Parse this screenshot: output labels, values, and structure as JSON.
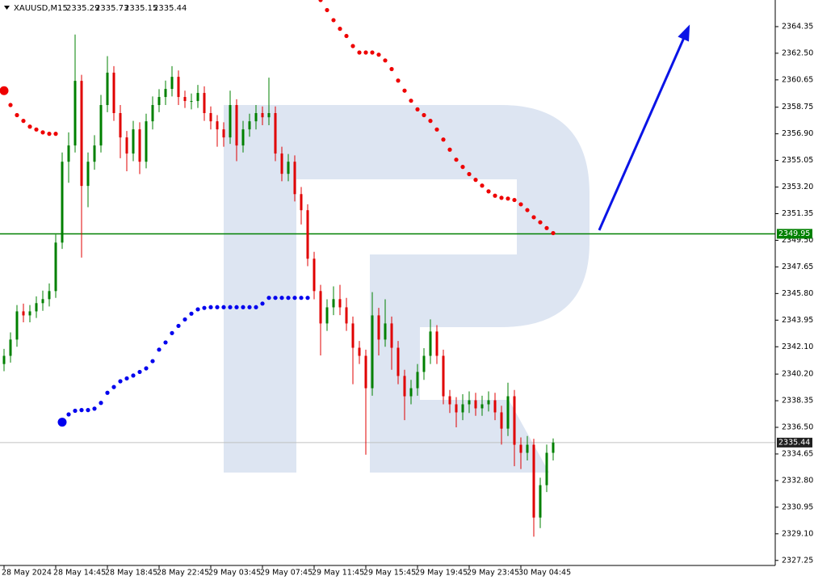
{
  "chart_data": {
    "type": "candlestick",
    "symbol": "XAUUSD,M15",
    "header_values": [
      2335.29,
      2335.73,
      2335.15,
      2335.44
    ],
    "up_color": "#008000",
    "down_color": "#e00000",
    "categories": [
      "28 May 2024",
      null,
      null,
      null,
      null,
      null,
      null,
      null,
      "28 May 14:45",
      null,
      null,
      null,
      null,
      null,
      null,
      null,
      "28 May 18:45",
      null,
      null,
      null,
      null,
      null,
      null,
      null,
      "28 May 22:45",
      null,
      null,
      null,
      null,
      null,
      null,
      null,
      "29 May 03:45",
      null,
      null,
      null,
      null,
      null,
      null,
      null,
      "29 May 07:45",
      null,
      null,
      null,
      null,
      null,
      null,
      null,
      "29 May 11:45",
      null,
      null,
      null,
      null,
      null,
      null,
      null,
      "29 May 15:45",
      null,
      null,
      null,
      null,
      null,
      null,
      null,
      "29 May 19:45",
      null,
      null,
      null,
      null,
      null,
      null,
      null,
      "29 May 23:45",
      null,
      null,
      null,
      null,
      null,
      null,
      null,
      "30 May 04:45",
      null,
      null,
      null,
      null,
      null
    ],
    "open": [
      2340.9,
      2341.47,
      2342.6,
      2344.56,
      2344.28,
      2344.56,
      2345.13,
      2345.41,
      2345.97,
      2349.34,
      2354.96,
      2356.09,
      2360.58,
      2353.28,
      2354.96,
      2356.09,
      2358.9,
      2361.15,
      2358.34,
      2356.65,
      2355.53,
      2357.21,
      2354.96,
      2357.77,
      2358.9,
      2359.46,
      2360.02,
      2360.86,
      2359.46,
      2359.18,
      2359.18,
      2359.74,
      2358.34,
      2357.77,
      2357.21,
      2356.65,
      2358.9,
      2356.09,
      2357.21,
      2357.77,
      2358.34,
      2358.05,
      2358.34,
      2355.53,
      2354.12,
      2354.96,
      2352.71,
      2351.59,
      2348.22,
      2345.97,
      2343.72,
      2344.84,
      2345.41,
      2344.84,
      2343.72,
      2342.03,
      2341.47,
      2339.22,
      2344.28,
      2342.6,
      2343.72,
      2342.03,
      2340.07,
      2338.66,
      2339.22,
      2340.35,
      2341.47,
      2343.16,
      2341.47,
      2338.66,
      2338.1,
      2337.54,
      2338.1,
      2338.38,
      2337.82,
      2338.1,
      2338.38,
      2337.54,
      2336.41,
      2338.66,
      2335.29,
      2334.73,
      2335.29,
      2330.23,
      2332.48,
      2334.73
    ],
    "high": [
      2341.95,
      2343.1,
      2345.0,
      2345.1,
      2345.0,
      2345.6,
      2346.0,
      2346.5,
      2349.9,
      2355.6,
      2357.0,
      2363.8,
      2361.0,
      2355.6,
      2356.8,
      2359.6,
      2362.3,
      2361.6,
      2358.9,
      2357.1,
      2357.8,
      2357.7,
      2358.3,
      2359.5,
      2360.0,
      2360.6,
      2361.6,
      2361.3,
      2359.9,
      2359.7,
      2360.3,
      2360.2,
      2358.8,
      2358.2,
      2357.7,
      2359.9,
      2359.3,
      2357.8,
      2358.3,
      2358.9,
      2358.8,
      2360.8,
      2358.8,
      2356.0,
      2355.5,
      2355.4,
      2353.2,
      2352.0,
      2348.7,
      2346.4,
      2345.4,
      2346.3,
      2346.4,
      2345.5,
      2344.2,
      2342.5,
      2341.9,
      2345.9,
      2344.8,
      2345.4,
      2344.2,
      2342.5,
      2340.5,
      2339.8,
      2340.9,
      2342.0,
      2344.0,
      2343.6,
      2341.9,
      2339.1,
      2338.6,
      2338.8,
      2339.0,
      2338.9,
      2338.7,
      2339.0,
      2338.9,
      2338.0,
      2339.6,
      2339.1,
      2335.8,
      2335.9,
      2335.7,
      2333.0,
      2335.3,
      2335.73
    ],
    "low": [
      2340.4,
      2341.0,
      2342.1,
      2343.8,
      2343.8,
      2344.1,
      2344.6,
      2344.9,
      2345.5,
      2348.9,
      2353.5,
      2355.6,
      2348.3,
      2351.8,
      2354.4,
      2355.6,
      2358.4,
      2357.8,
      2355.2,
      2354.3,
      2355.0,
      2354.1,
      2354.5,
      2357.2,
      2358.4,
      2358.9,
      2359.5,
      2358.9,
      2358.7,
      2358.6,
      2358.7,
      2357.8,
      2357.2,
      2356.0,
      2356.0,
      2356.2,
      2355.0,
      2355.6,
      2356.7,
      2357.2,
      2357.5,
      2357.5,
      2355.0,
      2353.6,
      2353.6,
      2352.2,
      2350.6,
      2347.7,
      2345.4,
      2341.5,
      2343.2,
      2344.3,
      2344.3,
      2343.2,
      2339.5,
      2340.9,
      2334.6,
      2338.7,
      2341.5,
      2342.1,
      2340.5,
      2339.5,
      2337.0,
      2338.1,
      2338.7,
      2339.8,
      2340.9,
      2340.9,
      2338.1,
      2337.5,
      2336.5,
      2337.0,
      2337.5,
      2337.3,
      2337.3,
      2337.6,
      2337.0,
      2335.3,
      2335.9,
      2333.8,
      2333.6,
      2334.2,
      2328.9,
      2329.5,
      2332.0,
      2334.2
    ],
    "close": [
      2341.47,
      2342.6,
      2344.56,
      2344.28,
      2344.56,
      2345.13,
      2345.41,
      2345.97,
      2349.34,
      2354.96,
      2356.09,
      2360.58,
      2353.28,
      2354.96,
      2356.09,
      2358.9,
      2361.15,
      2358.34,
      2356.65,
      2355.53,
      2357.21,
      2354.96,
      2357.77,
      2358.9,
      2359.46,
      2360.02,
      2360.86,
      2359.46,
      2359.18,
      2359.18,
      2359.74,
      2358.34,
      2357.77,
      2357.21,
      2356.65,
      2358.9,
      2356.09,
      2357.21,
      2357.77,
      2358.34,
      2358.05,
      2358.34,
      2355.53,
      2354.12,
      2354.96,
      2352.71,
      2351.59,
      2348.22,
      2345.97,
      2343.72,
      2344.84,
      2345.41,
      2344.84,
      2343.72,
      2342.03,
      2341.47,
      2339.22,
      2344.28,
      2342.6,
      2343.72,
      2342.03,
      2340.07,
      2338.66,
      2339.22,
      2340.35,
      2341.47,
      2343.16,
      2341.47,
      2338.66,
      2338.1,
      2337.54,
      2338.1,
      2338.38,
      2337.82,
      2338.1,
      2338.38,
      2337.54,
      2336.41,
      2338.66,
      2335.29,
      2334.73,
      2335.29,
      2330.23,
      2332.48,
      2334.73,
      2335.44
    ],
    "overlays": [
      {
        "color": "#ee0000",
        "values": [
          2359.9,
          2358.9,
          2358.2,
          2357.8,
          2357.4,
          2357.2,
          2357.0,
          2356.9,
          2356.9,
          null,
          null,
          null,
          null,
          null,
          null,
          null,
          null,
          null,
          null,
          null,
          null,
          null,
          null,
          null,
          null,
          null,
          null,
          null,
          null,
          null,
          null,
          null,
          null,
          null,
          null,
          null,
          null,
          null,
          null,
          null,
          null,
          null,
          null,
          null,
          null,
          null,
          null,
          null,
          null,
          2366.2,
          2365.5,
          2364.8,
          2364.2,
          2363.7,
          2363.0,
          2362.55,
          2362.55,
          2362.55,
          2362.4,
          2362.0,
          2361.4,
          2360.6,
          2359.9,
          2359.2,
          2358.6,
          2358.2,
          2357.8,
          2357.2,
          2356.5,
          2355.8,
          2355.1,
          2354.6,
          2354.1,
          2353.7,
          2353.3,
          2352.9,
          2352.6,
          2352.45,
          2352.4,
          2352.3,
          2352.0,
          2351.6,
          2351.1,
          2350.75,
          2350.35,
          2350.0
        ]
      },
      {
        "color": "#0000ee",
        "values": [
          null,
          null,
          null,
          null,
          null,
          null,
          null,
          null,
          null,
          2336.86,
          2337.4,
          2337.65,
          2337.7,
          2337.7,
          2337.8,
          2338.2,
          2338.9,
          2339.3,
          2339.7,
          2339.9,
          2340.1,
          2340.35,
          2340.6,
          2341.1,
          2341.9,
          2342.4,
          2343.05,
          2343.55,
          2344.0,
          2344.4,
          2344.7,
          2344.8,
          2344.85,
          2344.85,
          2344.85,
          2344.85,
          2344.85,
          2344.85,
          2344.85,
          2344.85,
          2345.1,
          2345.5,
          2345.5,
          2345.5,
          2345.5,
          2345.5,
          2345.5,
          2345.5,
          null,
          null,
          null,
          null,
          null,
          null,
          null,
          null,
          null,
          null,
          null,
          null,
          null,
          null,
          null,
          null,
          null,
          null,
          null,
          null,
          null,
          null,
          null,
          null,
          null,
          null,
          null,
          null,
          null,
          null,
          null,
          null,
          null,
          null,
          null,
          null,
          null,
          null
        ]
      }
    ],
    "hlines": [
      {
        "value": 2349.95,
        "color": "#008000",
        "label_bg": "#008000"
      },
      {
        "value": 2335.44,
        "color": "#c0c0c0",
        "label_bg": "#202020"
      }
    ],
    "ylim": [
      2326.9,
      2366.2
    ],
    "yticks": [
      2364.35,
      {
        "value": 2362.5,
        "label": "2362.50"
      },
      2360.65,
      2358.75,
      {
        "value": 2356.9,
        "label": "2356.90"
      },
      2355.05,
      {
        "value": 2353.2,
        "label": "2353.20"
      },
      2351.35,
      {
        "value": 2349.5,
        "label": "2349.50"
      },
      2347.65,
      {
        "value": 2345.8,
        "label": "2345.80"
      },
      2343.95,
      {
        "value": 2342.1,
        "label": "2342.10"
      },
      {
        "value": 2340.2,
        "label": "2340.20"
      },
      2338.35,
      {
        "value": 2336.5,
        "label": "2336.50"
      },
      2334.65,
      {
        "value": 2332.8,
        "label": "2332.80"
      },
      2330.95,
      {
        "value": 2329.1,
        "label": "2329.10"
      },
      2327.25
    ]
  }
}
